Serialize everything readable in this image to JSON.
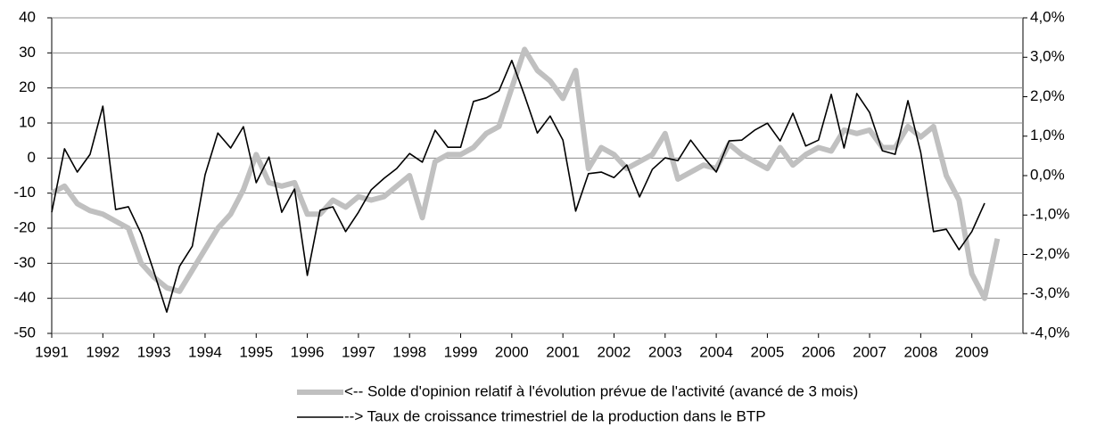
{
  "chart_data": {
    "type": "line",
    "x": [
      1991,
      1991.25,
      1991.5,
      1991.75,
      1992,
      1992.25,
      1992.5,
      1992.75,
      1993,
      1993.25,
      1993.5,
      1993.75,
      1994,
      1994.25,
      1994.5,
      1994.75,
      1995,
      1995.25,
      1995.5,
      1995.75,
      1996,
      1996.25,
      1996.5,
      1996.75,
      1997,
      1997.25,
      1997.5,
      1997.75,
      1998,
      1998.25,
      1998.5,
      1998.75,
      1999,
      1999.25,
      1999.5,
      1999.75,
      2000,
      2000.25,
      2000.5,
      2000.75,
      2001,
      2001.25,
      2001.5,
      2001.75,
      2002,
      2002.25,
      2002.5,
      2002.75,
      2003,
      2003.25,
      2003.5,
      2003.75,
      2004,
      2004.25,
      2004.5,
      2004.75,
      2005,
      2005.25,
      2005.5,
      2005.75,
      2006,
      2006.25,
      2006.5,
      2006.75,
      2007,
      2007.25,
      2007.5,
      2007.75,
      2008,
      2008.25,
      2008.5,
      2008.75,
      2009,
      2009.25,
      2009.5
    ],
    "xlim": [
      1991,
      2010
    ],
    "xticks": [
      1991,
      1992,
      1993,
      1994,
      1995,
      1996,
      1997,
      1998,
      1999,
      2000,
      2001,
      2002,
      2003,
      2004,
      2005,
      2006,
      2007,
      2008,
      2009
    ],
    "ylim": [
      -50,
      40
    ],
    "yticks": [
      -50,
      -40,
      -30,
      -20,
      -10,
      0,
      10,
      20,
      30,
      40
    ],
    "y2lim": [
      -4,
      4
    ],
    "y2ticks": [
      {
        "value": -4,
        "label": "-4,0%"
      },
      {
        "value": -3,
        "label": "-3,0%"
      },
      {
        "value": -2,
        "label": "-2,0%"
      },
      {
        "value": -1,
        "label": "-1,0%"
      },
      {
        "value": 0,
        "label": "0,0%"
      },
      {
        "value": 1,
        "label": "1,0%"
      },
      {
        "value": 2,
        "label": "2,0%"
      },
      {
        "value": 3,
        "label": "3,0%"
      },
      {
        "value": 4,
        "label": "4,0%"
      }
    ],
    "grid": true,
    "legend": "bottom",
    "series": [
      {
        "name": "<-- Solde d'opinion relatif à l'évolution prévue de l'activité (avancé de 3 mois)",
        "color": "#c0c0c0",
        "axis": "y",
        "values": [
          -10,
          -8,
          -13,
          -15,
          -16,
          -18,
          -20,
          -30,
          -34,
          -37,
          -38,
          -32,
          -26,
          -20,
          -16,
          -9,
          1,
          -7,
          -8,
          -7,
          -16,
          -16,
          -12,
          -14,
          -11,
          -12,
          -11,
          -8,
          -5,
          -17,
          -1,
          1,
          1,
          3,
          7,
          9,
          20,
          31,
          25,
          22,
          17,
          25,
          -3,
          3,
          1,
          -3,
          -1,
          1,
          7,
          -6,
          -4,
          -2,
          -3,
          4,
          1,
          -1,
          -3,
          3,
          -2,
          1,
          3,
          2,
          8,
          7,
          8,
          3,
          3,
          9,
          6,
          9,
          -5,
          -12,
          -33,
          -40,
          -23
        ]
      },
      {
        "name": "--> Taux de croissance trimestriel de la production dans le BTP",
        "color": "#000000",
        "axis": "y2",
        "values": [
          -0.93,
          0.68,
          0.09,
          0.54,
          1.76,
          -0.86,
          -0.79,
          -1.47,
          -2.44,
          -3.46,
          -2.3,
          -1.79,
          0.02,
          1.08,
          0.7,
          1.24,
          -0.18,
          0.47,
          -0.93,
          -0.34,
          -2.53,
          -0.88,
          -0.79,
          -1.42,
          -0.93,
          -0.36,
          -0.07,
          0.18,
          0.56,
          0.34,
          1.15,
          0.72,
          0.72,
          1.88,
          1.97,
          2.15,
          2.92,
          2.03,
          1.08,
          1.51,
          0.9,
          -0.9,
          0.05,
          0.09,
          -0.05,
          0.27,
          -0.54,
          0.16,
          0.45,
          0.38,
          0.9,
          0.47,
          0.09,
          0.88,
          0.9,
          1.15,
          1.33,
          0.88,
          1.58,
          0.75,
          0.9,
          2.06,
          0.7,
          2.08,
          1.6,
          0.63,
          0.54,
          1.9,
          0.59,
          -1.42,
          -1.36,
          -1.88,
          -1.42,
          -0.7,
          null
        ]
      }
    ]
  }
}
